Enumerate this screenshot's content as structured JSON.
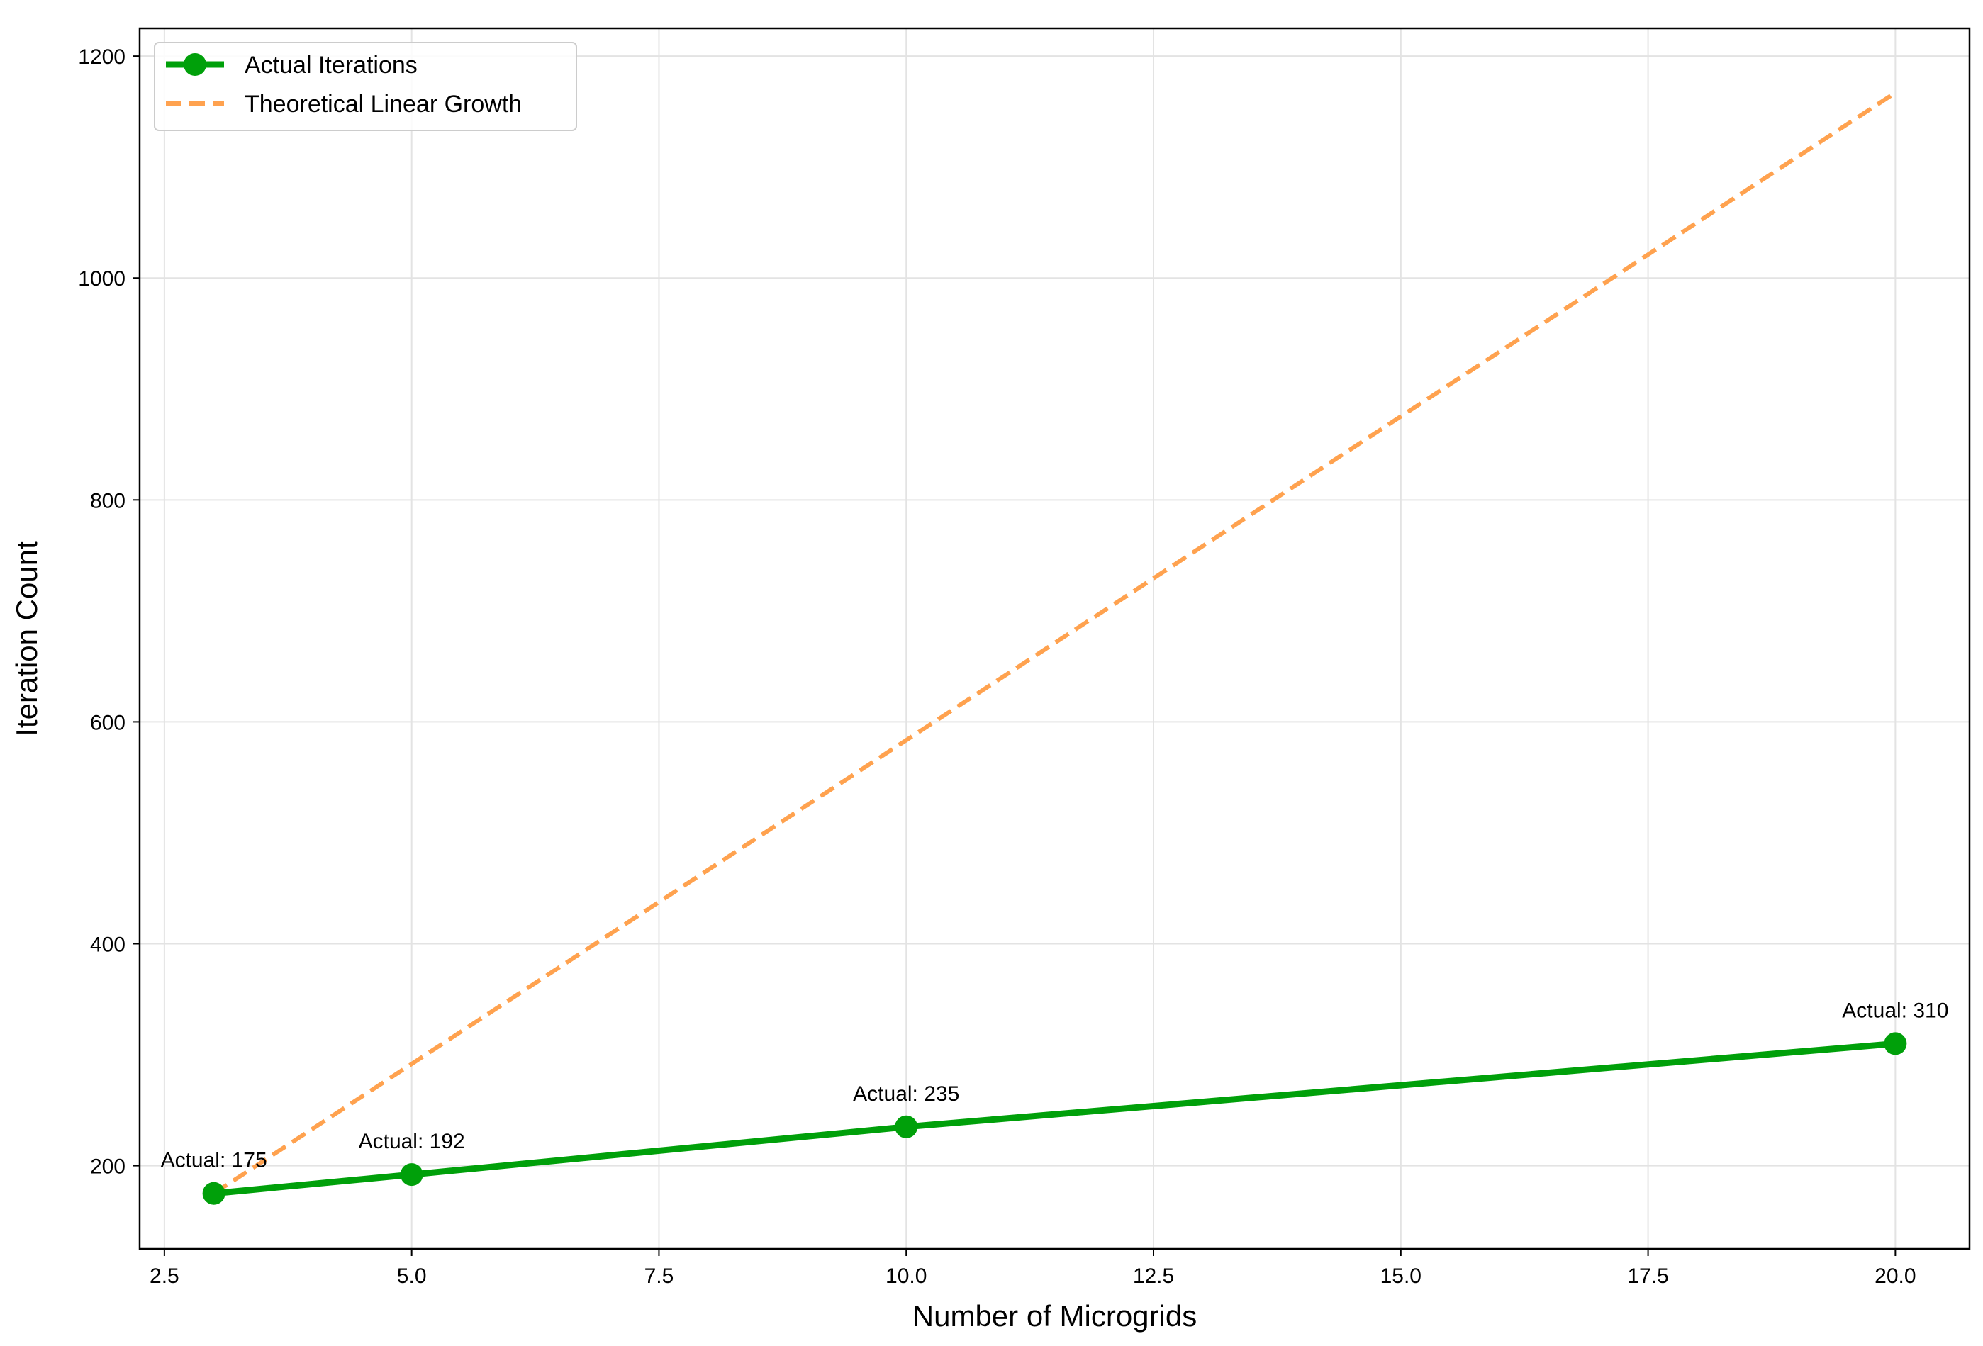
{
  "chart_data": {
    "type": "line",
    "title": "",
    "xlabel": "Number of Microgrids",
    "ylabel": "Iteration Count",
    "xlim": [
      2.25,
      20.75
    ],
    "ylim": [
      125,
      1225
    ],
    "xticks": [
      2.5,
      5.0,
      7.5,
      10.0,
      12.5,
      15.0,
      17.5,
      20.0
    ],
    "xtick_labels": [
      "2.5",
      "5.0",
      "7.5",
      "10.0",
      "12.5",
      "15.0",
      "17.5",
      "20.0"
    ],
    "yticks": [
      200,
      400,
      600,
      800,
      1000,
      1200
    ],
    "ytick_labels": [
      "200",
      "400",
      "600",
      "800",
      "1000",
      "1200"
    ],
    "grid": true,
    "legend_position": "top-left",
    "series": [
      {
        "name": "Actual Iterations",
        "style": "solid-with-markers",
        "color": "#00a00a",
        "x": [
          3,
          5,
          10,
          20
        ],
        "y": [
          175,
          192,
          235,
          310
        ]
      },
      {
        "name": "Theoretical Linear Growth",
        "style": "dashed",
        "color": "#ffa24f",
        "x": [
          3,
          20
        ],
        "y": [
          175,
          1167
        ]
      }
    ],
    "annotations": [
      {
        "text": "Actual: 175",
        "x": 3,
        "y": 175
      },
      {
        "text": "Actual: 192",
        "x": 5,
        "y": 192
      },
      {
        "text": "Actual: 235",
        "x": 10,
        "y": 235
      },
      {
        "text": "Actual: 310",
        "x": 20,
        "y": 310
      }
    ]
  }
}
